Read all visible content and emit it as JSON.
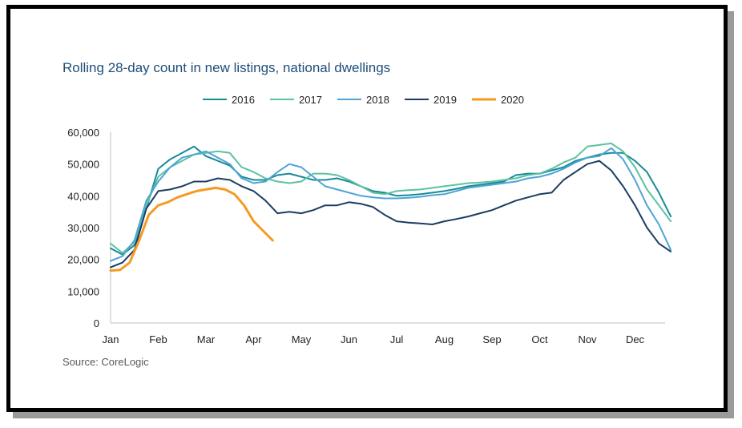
{
  "chart_data": {
    "type": "line",
    "title": "Rolling 28-day count in new listings, national dwellings",
    "source": "Source: CoreLogic",
    "x_tick_labels": [
      "Jan",
      "Feb",
      "Mar",
      "Apr",
      "May",
      "Jun",
      "Jul",
      "Aug",
      "Sep",
      "Oct",
      "Nov",
      "Dec"
    ],
    "y_tick_labels": [
      "0",
      "10,000",
      "20,000",
      "30,000",
      "40,000",
      "50,000",
      "60,000"
    ],
    "ylim": [
      0,
      60000
    ],
    "xlim": [
      0,
      11.8
    ],
    "legend_position": "top",
    "grid": false,
    "series": [
      {
        "name": "2016",
        "color": "#1a8a99",
        "x": [
          0,
          0.25,
          0.5,
          0.75,
          1,
          1.25,
          1.5,
          1.75,
          2,
          2.25,
          2.5,
          2.75,
          3,
          3.25,
          3.5,
          3.75,
          4,
          4.25,
          4.5,
          4.75,
          5,
          5.25,
          5.5,
          5.75,
          6,
          6.25,
          6.5,
          6.75,
          7,
          7.25,
          7.5,
          7.75,
          8,
          8.25,
          8.5,
          8.75,
          9,
          9.25,
          9.5,
          9.75,
          10,
          10.25,
          10.5,
          10.75,
          11,
          11.25,
          11.5,
          11.75
        ],
        "y": [
          23500,
          21500,
          24500,
          36000,
          48500,
          51500,
          53500,
          55500,
          52500,
          51000,
          49500,
          46000,
          45000,
          45000,
          46500,
          47000,
          46000,
          45000,
          45000,
          45500,
          44500,
          43000,
          41500,
          41000,
          40000,
          40200,
          40500,
          41000,
          41500,
          42200,
          43000,
          43500,
          44000,
          44500,
          46500,
          47000,
          47000,
          48000,
          49000,
          51000,
          52000,
          53000,
          53500,
          53500,
          51000,
          47500,
          41000,
          33500
        ]
      },
      {
        "name": "2017",
        "color": "#5cc2a0",
        "x": [
          0,
          0.25,
          0.5,
          0.75,
          1,
          1.25,
          1.5,
          1.75,
          2,
          2.25,
          2.5,
          2.75,
          3,
          3.25,
          3.5,
          3.75,
          4,
          4.25,
          4.5,
          4.75,
          5,
          5.25,
          5.5,
          5.75,
          6,
          6.25,
          6.5,
          6.75,
          7,
          7.25,
          7.5,
          7.75,
          8,
          8.25,
          8.5,
          8.75,
          9,
          9.25,
          9.5,
          9.75,
          10,
          10.25,
          10.5,
          10.75,
          11,
          11.25,
          11.5,
          11.75
        ],
        "y": [
          25000,
          22000,
          25500,
          37000,
          46000,
          49000,
          51000,
          53000,
          53500,
          54000,
          53500,
          49000,
          47500,
          45500,
          44500,
          44000,
          44500,
          47000,
          47000,
          46500,
          45000,
          43000,
          41000,
          40500,
          41500,
          41800,
          42000,
          42500,
          43000,
          43500,
          44000,
          44200,
          44500,
          45000,
          45500,
          46500,
          47000,
          48500,
          50500,
          52000,
          55500,
          56000,
          56500,
          54000,
          49000,
          42000,
          37000,
          32000
        ]
      },
      {
        "name": "2018",
        "color": "#4ea4d6",
        "x": [
          0,
          0.25,
          0.5,
          0.75,
          1,
          1.25,
          1.5,
          1.75,
          2,
          2.25,
          2.5,
          2.75,
          3,
          3.25,
          3.5,
          3.75,
          4,
          4.25,
          4.5,
          4.75,
          5,
          5.25,
          5.5,
          5.75,
          6,
          6.25,
          6.5,
          6.75,
          7,
          7.25,
          7.5,
          7.75,
          8,
          8.25,
          8.5,
          8.75,
          9,
          9.25,
          9.5,
          9.75,
          10,
          10.25,
          10.5,
          10.75,
          11,
          11.25,
          11.5,
          11.75
        ],
        "y": [
          19500,
          21000,
          26000,
          38500,
          44500,
          49000,
          52000,
          53000,
          54000,
          52000,
          50000,
          45500,
          44000,
          44500,
          47500,
          50000,
          49000,
          46000,
          43000,
          42000,
          41000,
          40000,
          39500,
          39200,
          39200,
          39400,
          39700,
          40200,
          40500,
          41500,
          42500,
          43000,
          43500,
          44000,
          44500,
          45500,
          46000,
          47000,
          48500,
          50500,
          52000,
          52500,
          55000,
          51500,
          45000,
          37000,
          31000,
          23000
        ]
      },
      {
        "name": "2019",
        "color": "#1b3c63",
        "x": [
          0,
          0.25,
          0.5,
          0.75,
          1,
          1.25,
          1.5,
          1.75,
          2,
          2.25,
          2.5,
          2.75,
          3,
          3.25,
          3.5,
          3.75,
          4,
          4.25,
          4.5,
          4.75,
          5,
          5.25,
          5.5,
          5.75,
          6,
          6.25,
          6.5,
          6.75,
          7,
          7.25,
          7.5,
          7.75,
          8,
          8.25,
          8.5,
          8.75,
          9,
          9.25,
          9.5,
          9.75,
          10,
          10.25,
          10.5,
          10.75,
          11,
          11.25,
          11.5,
          11.75
        ],
        "y": [
          17500,
          19000,
          23000,
          36000,
          41500,
          42000,
          43000,
          44500,
          44500,
          45500,
          45000,
          43000,
          41500,
          38500,
          34500,
          35000,
          34500,
          35500,
          37000,
          37000,
          38000,
          37500,
          36500,
          34000,
          32000,
          31600,
          31300,
          31000,
          32000,
          32700,
          33500,
          34500,
          35500,
          37000,
          38500,
          39500,
          40500,
          41000,
          45000,
          47500,
          50000,
          51000,
          48000,
          43000,
          37000,
          30000,
          25000,
          22500
        ]
      },
      {
        "name": "2020",
        "color": "#f59a23",
        "x": [
          0,
          0.2,
          0.4,
          0.6,
          0.8,
          1,
          1.2,
          1.4,
          1.6,
          1.8,
          2,
          2.2,
          2.4,
          2.6,
          2.8,
          3,
          3.2,
          3.4
        ],
        "y": [
          16500,
          16700,
          19000,
          26000,
          34000,
          37000,
          38000,
          39500,
          40500,
          41500,
          42000,
          42500,
          42000,
          40500,
          37000,
          32000,
          29000,
          26000
        ]
      }
    ]
  }
}
